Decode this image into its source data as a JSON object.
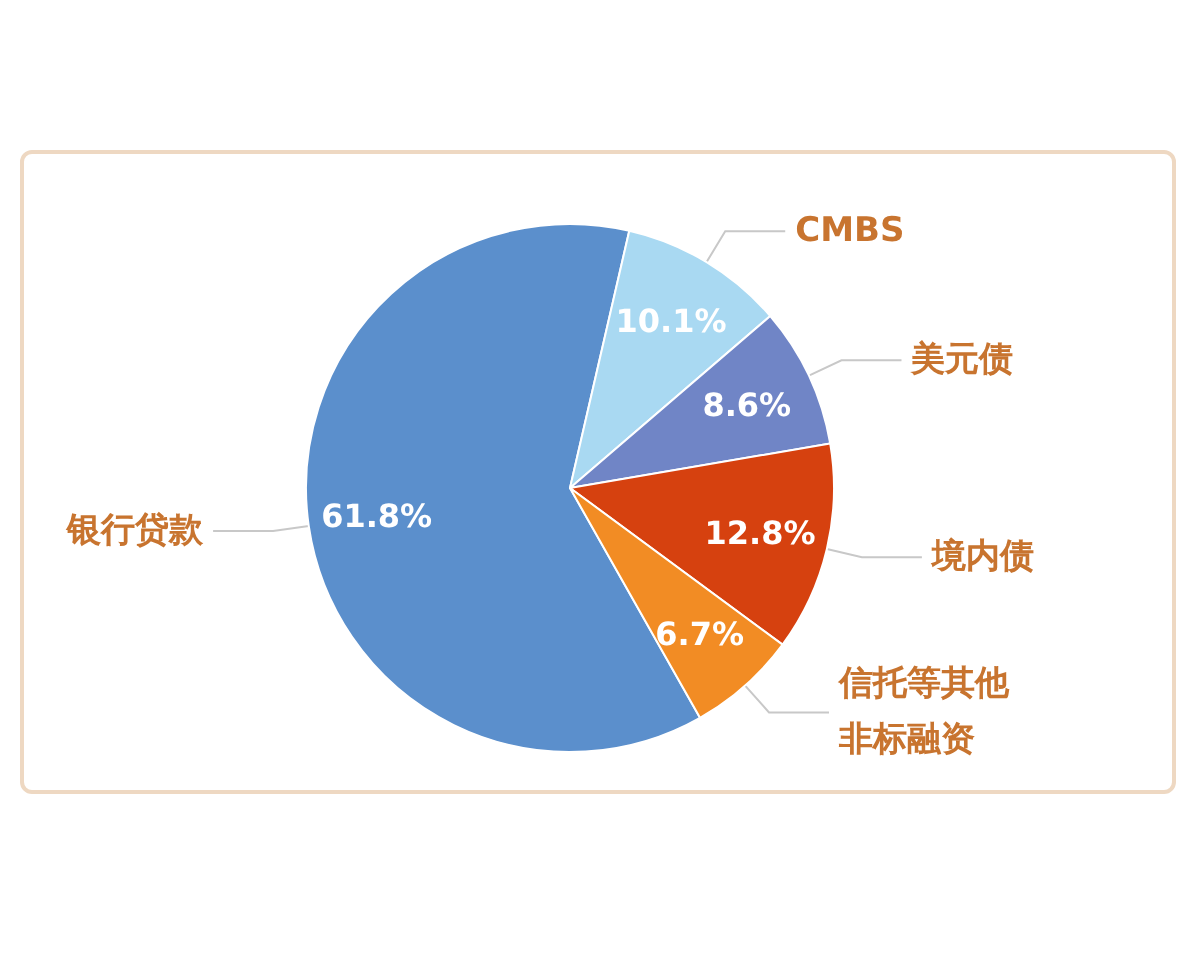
{
  "chart_data": {
    "type": "pie",
    "categories": [
      "银行贷款",
      "CMBS",
      "美元债",
      "境内债",
      "信托等其他非标融资"
    ],
    "values": [
      61.8,
      10.1,
      8.6,
      12.8,
      6.7
    ],
    "colors": [
      "#5b8fcc",
      "#a9d9f2",
      "#7085c6",
      "#d6410f",
      "#f28c24"
    ],
    "value_labels": [
      "61.8%",
      "10.1%",
      "8.6%",
      "12.8%",
      "6.7%"
    ]
  }
}
